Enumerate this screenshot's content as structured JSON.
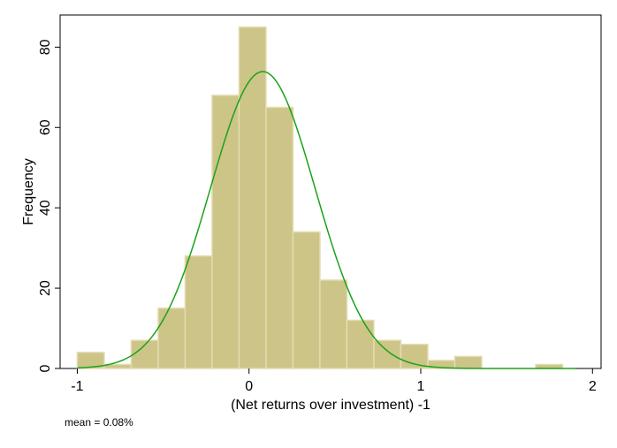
{
  "chart_data": {
    "type": "bar",
    "subtype": "histogram-with-normal-density",
    "xlabel": "(Net returns over investment) -1",
    "ylabel": "Frequency",
    "xlim": [
      -1.1,
      2.05
    ],
    "ylim": [
      0,
      88
    ],
    "x_ticks": [
      -1,
      0,
      1,
      2
    ],
    "y_ticks": [
      0,
      20,
      40,
      60,
      80
    ],
    "bin_width": 0.157,
    "bins": [
      {
        "x0": -1.0,
        "x1": -0.843,
        "value": 4
      },
      {
        "x0": -0.843,
        "x1": -0.686,
        "value": 1
      },
      {
        "x0": -0.686,
        "x1": -0.529,
        "value": 7
      },
      {
        "x0": -0.529,
        "x1": -0.372,
        "value": 15
      },
      {
        "x0": -0.372,
        "x1": -0.215,
        "value": 28
      },
      {
        "x0": -0.215,
        "x1": -0.058,
        "value": 68
      },
      {
        "x0": -0.058,
        "x1": 0.099,
        "value": 85
      },
      {
        "x0": 0.099,
        "x1": 0.256,
        "value": 65
      },
      {
        "x0": 0.256,
        "x1": 0.413,
        "value": 34
      },
      {
        "x0": 0.413,
        "x1": 0.57,
        "value": 22
      },
      {
        "x0": 0.57,
        "x1": 0.727,
        "value": 12
      },
      {
        "x0": 0.727,
        "x1": 0.884,
        "value": 7
      },
      {
        "x0": 0.884,
        "x1": 1.041,
        "value": 6
      },
      {
        "x0": 1.041,
        "x1": 1.198,
        "value": 2
      },
      {
        "x0": 1.198,
        "x1": 1.355,
        "value": 3
      },
      {
        "x0": 1.355,
        "x1": 1.512,
        "value": 0
      },
      {
        "x0": 1.512,
        "x1": 1.669,
        "value": 0
      },
      {
        "x0": 1.669,
        "x1": 1.826,
        "value": 1
      }
    ],
    "normal_curve": {
      "mean": 0.08,
      "sd": 0.305,
      "x_range": [
        -1.0,
        1.9
      ]
    },
    "grid": false,
    "legend": "none",
    "colors": {
      "bar_fill": "#cdc488",
      "bar_edge": "#e3dcb0",
      "curve": "#1aa31a",
      "axis": "#000000"
    },
    "note": "mean = 0.08%"
  }
}
